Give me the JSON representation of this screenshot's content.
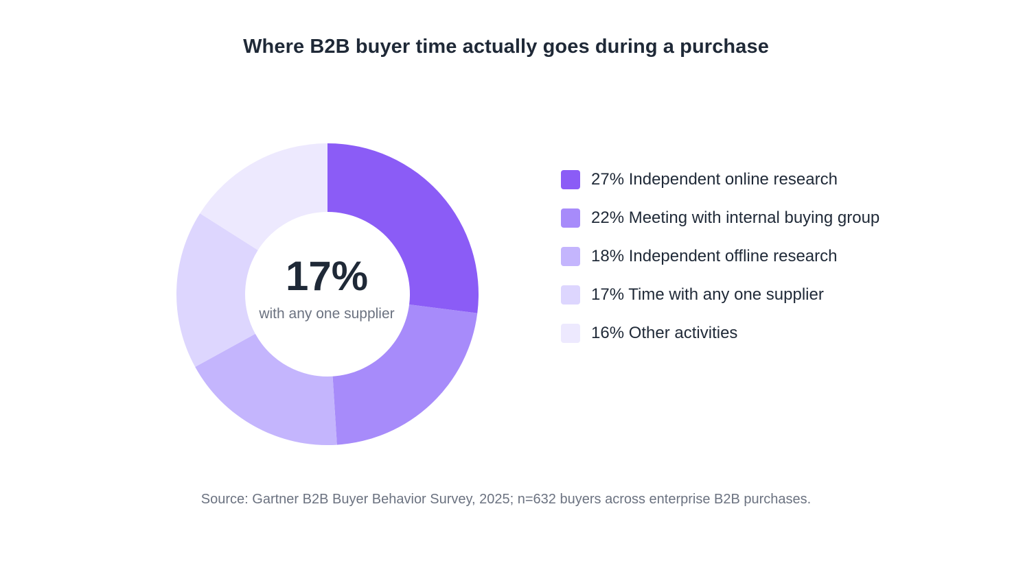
{
  "chart_data": {
    "type": "pie",
    "variant": "donut",
    "title": "Where B2B buyer time actually goes during a purchase",
    "categories": [
      "Independent online research",
      "Meeting with internal buying group",
      "Independent offline research",
      "Time with any one supplier",
      "Other activities"
    ],
    "values": [
      27,
      22,
      18,
      17,
      16
    ],
    "value_suffix": "%",
    "colors": [
      "#8b5cf6",
      "#a78bfa",
      "#c4b5fd",
      "#ddd6fe",
      "#ede9fe"
    ],
    "legend_position": "right",
    "center_value": "17%",
    "center_label": "with any one supplier",
    "source": "Source: Gartner B2B Buyer Behavior Survey, 2025; n=632 buyers across enterprise B2B purchases."
  },
  "legend_labels": [
    "27% Independent online research",
    "22% Meeting with internal buying group",
    "18% Independent offline research",
    "17% Time with any one supplier",
    "16% Other activities"
  ]
}
